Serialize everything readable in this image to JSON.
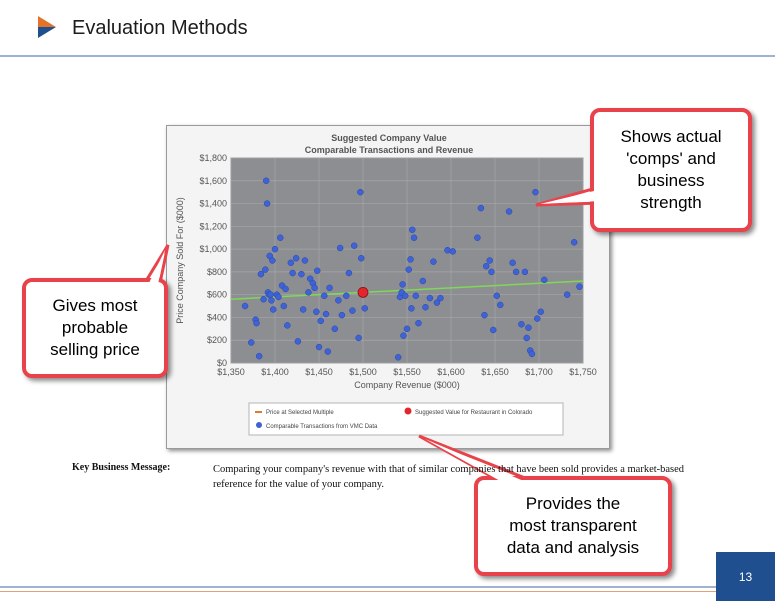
{
  "slide": {
    "title": "Evaluation Methods",
    "page_number": "13"
  },
  "chart_data": {
    "type": "scatter",
    "title": "Suggested Company Value",
    "subtitle": "Comparable Transactions and Revenue",
    "xlabel": "Company Revenue ($000)",
    "ylabel": "Price Company Sold For ($000)",
    "xlim": [
      1350,
      1750
    ],
    "ylim": [
      0,
      1800
    ],
    "x_ticks": [
      "$1,350",
      "$1,400",
      "$1,450",
      "$1,500",
      "$1,550",
      "$1,600",
      "$1,650",
      "$1,700",
      "$1,750"
    ],
    "y_ticks": [
      "$0",
      "$200",
      "$400",
      "$600",
      "$800",
      "$1,000",
      "$1,200",
      "$1,400",
      "$1,600",
      "$1,800"
    ],
    "grid": true,
    "legend_placement": "bottom",
    "colors": {
      "plot_background": "#8c8e92",
      "comparables": "#3f62d4",
      "suggested": "#e3262e",
      "multiple_line": "#7ed957",
      "legend_line": "#e07a2e"
    },
    "series": [
      {
        "name": "Price at Selected Multiple",
        "type": "line",
        "x": [
          1350,
          1750
        ],
        "y": [
          560,
          720
        ]
      },
      {
        "name": "Suggested Value for Restaurant in Colorado",
        "type": "point",
        "x": [
          1500
        ],
        "y": [
          620
        ]
      },
      {
        "name": "Comparable Transactions from VMC Data",
        "type": "scatter",
        "points": [
          [
            1366,
            500
          ],
          [
            1373,
            180
          ],
          [
            1378,
            380
          ],
          [
            1379,
            350
          ],
          [
            1382,
            60
          ],
          [
            1384,
            780
          ],
          [
            1387,
            560
          ],
          [
            1389,
            820
          ],
          [
            1390,
            1600
          ],
          [
            1391,
            1400
          ],
          [
            1392,
            620
          ],
          [
            1393,
            600
          ],
          [
            1394,
            940
          ],
          [
            1395,
            600
          ],
          [
            1396,
            550
          ],
          [
            1397,
            900
          ],
          [
            1398,
            470
          ],
          [
            1400,
            1000
          ],
          [
            1402,
            600
          ],
          [
            1404,
            580
          ],
          [
            1406,
            1100
          ],
          [
            1408,
            680
          ],
          [
            1410,
            500
          ],
          [
            1412,
            650
          ],
          [
            1414,
            330
          ],
          [
            1418,
            880
          ],
          [
            1420,
            790
          ],
          [
            1424,
            920
          ],
          [
            1426,
            190
          ],
          [
            1430,
            780
          ],
          [
            1432,
            470
          ],
          [
            1434,
            900
          ],
          [
            1438,
            620
          ],
          [
            1440,
            740
          ],
          [
            1443,
            700
          ],
          [
            1445,
            660
          ],
          [
            1447,
            450
          ],
          [
            1448,
            810
          ],
          [
            1450,
            140
          ],
          [
            1452,
            370
          ],
          [
            1456,
            590
          ],
          [
            1458,
            430
          ],
          [
            1460,
            100
          ],
          [
            1462,
            660
          ],
          [
            1468,
            300
          ],
          [
            1472,
            550
          ],
          [
            1474,
            1010
          ],
          [
            1476,
            420
          ],
          [
            1481,
            590
          ],
          [
            1484,
            790
          ],
          [
            1488,
            460
          ],
          [
            1490,
            1030
          ],
          [
            1495,
            220
          ],
          [
            1497,
            1500
          ],
          [
            1498,
            920
          ],
          [
            1502,
            480
          ],
          [
            1540,
            50
          ],
          [
            1542,
            580
          ],
          [
            1544,
            620
          ],
          [
            1545,
            690
          ],
          [
            1546,
            240
          ],
          [
            1548,
            590
          ],
          [
            1550,
            300
          ],
          [
            1552,
            820
          ],
          [
            1554,
            910
          ],
          [
            1555,
            480
          ],
          [
            1556,
            1170
          ],
          [
            1558,
            1100
          ],
          [
            1560,
            590
          ],
          [
            1563,
            350
          ],
          [
            1568,
            720
          ],
          [
            1571,
            490
          ],
          [
            1576,
            570
          ],
          [
            1580,
            890
          ],
          [
            1584,
            530
          ],
          [
            1588,
            570
          ],
          [
            1596,
            990
          ],
          [
            1602,
            980
          ],
          [
            1630,
            1100
          ],
          [
            1634,
            1360
          ],
          [
            1638,
            420
          ],
          [
            1640,
            850
          ],
          [
            1644,
            900
          ],
          [
            1646,
            800
          ],
          [
            1648,
            290
          ],
          [
            1652,
            590
          ],
          [
            1656,
            510
          ],
          [
            1666,
            1330
          ],
          [
            1670,
            880
          ],
          [
            1674,
            800
          ],
          [
            1680,
            340
          ],
          [
            1684,
            800
          ],
          [
            1686,
            220
          ],
          [
            1688,
            310
          ],
          [
            1690,
            110
          ],
          [
            1692,
            80
          ],
          [
            1696,
            1500
          ],
          [
            1698,
            390
          ],
          [
            1702,
            450
          ],
          [
            1706,
            730
          ],
          [
            1732,
            600
          ],
          [
            1740,
            1060
          ],
          [
            1746,
            670
          ]
        ]
      }
    ]
  },
  "callouts": {
    "top_right": "Shows actual\n'comps' and\nbusiness\nstrength",
    "left": "Gives most\nprobable\nselling price",
    "bottom": "Provides the\nmost transparent\ndata and analysis"
  },
  "message": {
    "label": "Key Business Message:",
    "text": "Comparing your company's revenue with that of similar companies that have been sold provides a market-based reference for the value of your company."
  }
}
